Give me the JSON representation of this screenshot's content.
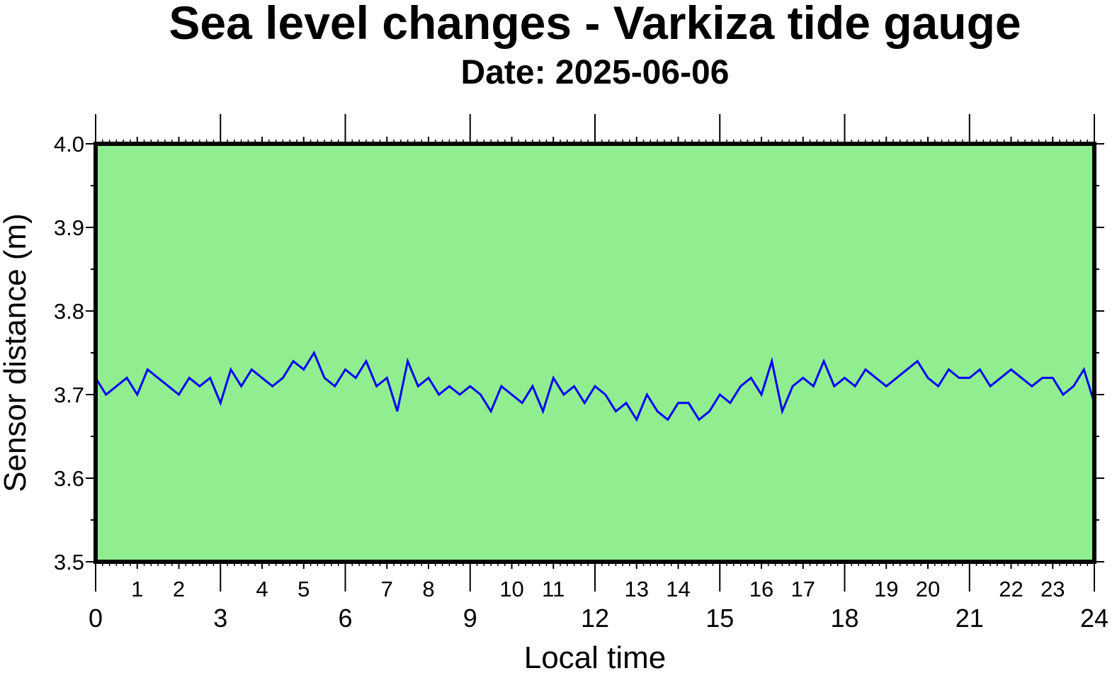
{
  "chart_data": {
    "type": "line",
    "title": "Sea level changes - Varkiza tide gauge",
    "subtitle": "Date: 2025-06-06",
    "xlabel": "Local time",
    "ylabel": "Sensor distance (m)",
    "xlim": [
      0,
      24
    ],
    "ylim": [
      3.5,
      4.0
    ],
    "y_ticks": [
      "3.5",
      "3.6",
      "3.7",
      "3.8",
      "3.9",
      "4.0"
    ],
    "x_major_ticks": [
      "0",
      "3",
      "6",
      "9",
      "12",
      "15",
      "18",
      "21",
      "24"
    ],
    "x_minor_labels": [
      "1",
      "2",
      "4",
      "5",
      "7",
      "8",
      "10",
      "11",
      "13",
      "14",
      "16",
      "17",
      "19",
      "20",
      "22",
      "23"
    ],
    "grid": false,
    "legend": "none",
    "colors": {
      "plot_background": "#90ee90",
      "series": "#0000ff",
      "frame": "#000000"
    },
    "series": [
      {
        "x": [
          0.0,
          0.25,
          0.5,
          0.75,
          1.0,
          1.25,
          1.5,
          1.75,
          2.0,
          2.25,
          2.5,
          2.75,
          3.0,
          3.25,
          3.5,
          3.75,
          4.0,
          4.25,
          4.5,
          4.75,
          5.0,
          5.25,
          5.5,
          5.75,
          6.0,
          6.25,
          6.5,
          6.75,
          7.0,
          7.25,
          7.5,
          7.75,
          8.0,
          8.25,
          8.5,
          8.75,
          9.0,
          9.25,
          9.5,
          9.75,
          10.0,
          10.25,
          10.5,
          10.75,
          11.0,
          11.25,
          11.5,
          11.75,
          12.0,
          12.25,
          12.5,
          12.75,
          13.0,
          13.25,
          13.5,
          13.75,
          14.0,
          14.25,
          14.5,
          14.75,
          15.0,
          15.25,
          15.5,
          15.75,
          16.0,
          16.25,
          16.5,
          16.75,
          17.0,
          17.25,
          17.5,
          17.75,
          18.0,
          18.25,
          18.5,
          18.75,
          19.0,
          19.25,
          19.5,
          19.75,
          20.0,
          20.25,
          20.5,
          20.75,
          21.0,
          21.25,
          21.5,
          21.75,
          22.0,
          22.25,
          22.5,
          22.75,
          23.0,
          23.25,
          23.5,
          23.75,
          24.0
        ],
        "values": [
          3.72,
          3.7,
          3.71,
          3.72,
          3.7,
          3.73,
          3.72,
          3.71,
          3.7,
          3.72,
          3.71,
          3.72,
          3.69,
          3.73,
          3.71,
          3.73,
          3.72,
          3.71,
          3.72,
          3.74,
          3.73,
          3.75,
          3.72,
          3.71,
          3.73,
          3.72,
          3.74,
          3.71,
          3.72,
          3.68,
          3.74,
          3.71,
          3.72,
          3.7,
          3.71,
          3.7,
          3.71,
          3.7,
          3.68,
          3.71,
          3.7,
          3.69,
          3.71,
          3.68,
          3.72,
          3.7,
          3.71,
          3.69,
          3.71,
          3.7,
          3.68,
          3.69,
          3.67,
          3.7,
          3.68,
          3.67,
          3.69,
          3.69,
          3.67,
          3.68,
          3.7,
          3.69,
          3.71,
          3.72,
          3.7,
          3.74,
          3.68,
          3.71,
          3.72,
          3.71,
          3.74,
          3.71,
          3.72,
          3.71,
          3.73,
          3.72,
          3.71,
          3.72,
          3.73,
          3.74,
          3.72,
          3.71,
          3.73,
          3.72,
          3.72,
          3.73,
          3.71,
          3.72,
          3.73,
          3.72,
          3.71,
          3.72,
          3.72,
          3.7,
          3.71,
          3.73,
          3.69
        ]
      }
    ]
  }
}
